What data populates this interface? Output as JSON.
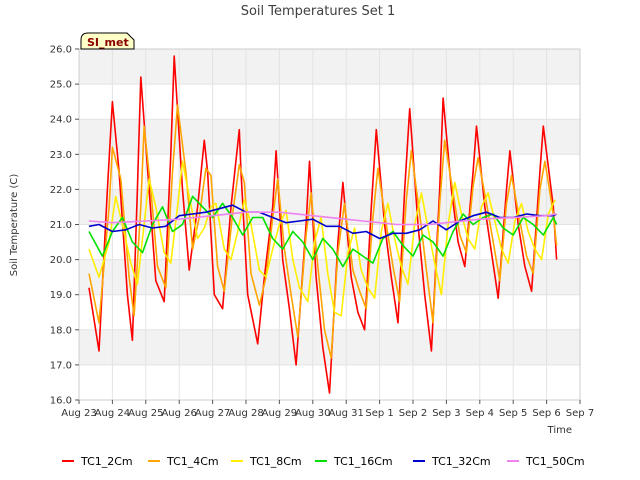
{
  "chart_data": {
    "type": "line",
    "title": "Soil Temperatures Set 1",
    "xlabel": "Time",
    "ylabel": "Soil Temperature (C)",
    "badge": "SI_met",
    "ylim": [
      16.0,
      26.0
    ],
    "yticks": [
      "16.0",
      "17.0",
      "18.0",
      "19.0",
      "20.0",
      "21.0",
      "22.0",
      "23.0",
      "24.0",
      "25.0",
      "26.0"
    ],
    "xlim": [
      0,
      15
    ],
    "xticks": [
      "Aug 23",
      "Aug 24",
      "Aug 25",
      "Aug 26",
      "Aug 27",
      "Aug 28",
      "Aug 29",
      "Aug 30",
      "Aug 31",
      "Sep 1",
      "Sep 2",
      "Sep 3",
      "Sep 4",
      "Sep 5",
      "Sep 6",
      "Sep 7"
    ],
    "grid": true,
    "banded_background": true,
    "legend_position": "bottom",
    "series": [
      {
        "name": "TC1_2Cm",
        "color": "#ff0000",
        "x": [
          0.3,
          0.6,
          0.85,
          1.0,
          1.2,
          1.45,
          1.6,
          1.75,
          1.85,
          2.1,
          2.3,
          2.55,
          2.75,
          2.85,
          3.1,
          3.3,
          3.55,
          3.75,
          3.85,
          4.05,
          4.3,
          4.55,
          4.8,
          4.85,
          5.05,
          5.35,
          5.55,
          5.8,
          5.9,
          6.1,
          6.3,
          6.5,
          6.8,
          6.9,
          7.1,
          7.3,
          7.5,
          7.75,
          7.9,
          8.15,
          8.35,
          8.55,
          8.75,
          8.9,
          9.15,
          9.35,
          9.55,
          9.75,
          9.9,
          10.15,
          10.35,
          10.55,
          10.8,
          10.9,
          11.15,
          11.35,
          11.55,
          11.8,
          11.9,
          12.15,
          12.35,
          12.55,
          12.8,
          12.9,
          13.15,
          13.35,
          13.55,
          13.8,
          13.9,
          14.2,
          14.3
        ],
        "y": [
          19.2,
          17.4,
          22.0,
          24.5,
          22.5,
          19.0,
          17.7,
          22.0,
          25.2,
          22.0,
          19.4,
          18.8,
          23.0,
          25.8,
          22.0,
          19.7,
          21.5,
          23.4,
          22.5,
          19.0,
          18.6,
          21.5,
          23.7,
          22.5,
          19.0,
          17.6,
          19.5,
          21.5,
          23.1,
          20.0,
          18.6,
          17.0,
          21.0,
          22.8,
          19.5,
          17.5,
          16.2,
          20.5,
          22.2,
          19.5,
          18.5,
          18.0,
          21.5,
          23.7,
          21.0,
          19.5,
          18.2,
          22.0,
          24.3,
          21.0,
          19.0,
          17.4,
          22.0,
          24.6,
          22.0,
          20.5,
          19.8,
          22.5,
          23.8,
          21.5,
          20.2,
          18.9,
          22.0,
          23.1,
          21.0,
          19.8,
          19.1,
          22.5,
          23.8,
          21.5,
          20.0
        ]
      },
      {
        "name": "TC1_4Cm",
        "color": "#ffa500",
        "x": [
          0.3,
          0.6,
          0.9,
          1.0,
          1.25,
          1.5,
          1.65,
          1.85,
          1.95,
          2.15,
          2.35,
          2.6,
          2.8,
          2.95,
          3.2,
          3.4,
          3.6,
          3.8,
          3.95,
          4.15,
          4.35,
          4.6,
          4.8,
          4.95,
          5.15,
          5.4,
          5.6,
          5.8,
          5.95,
          6.15,
          6.35,
          6.55,
          6.8,
          6.95,
          7.15,
          7.35,
          7.55,
          7.75,
          7.95,
          8.2,
          8.4,
          8.6,
          8.8,
          8.95,
          9.2,
          9.4,
          9.6,
          9.8,
          9.95,
          10.2,
          10.4,
          10.6,
          10.8,
          10.95,
          11.2,
          11.4,
          11.6,
          11.8,
          11.95,
          12.2,
          12.4,
          12.6,
          12.8,
          12.95,
          13.2,
          13.4,
          13.6,
          13.8,
          13.95,
          14.2,
          14.3
        ],
        "y": [
          19.6,
          18.2,
          21.5,
          23.2,
          22.3,
          19.5,
          18.4,
          21.5,
          23.8,
          22.0,
          19.8,
          19.2,
          22.5,
          24.4,
          22.5,
          20.3,
          21.2,
          22.6,
          22.4,
          19.8,
          19.1,
          21.3,
          22.7,
          22.2,
          19.6,
          18.7,
          19.5,
          21.2,
          22.3,
          20.3,
          19.0,
          17.8,
          20.7,
          21.9,
          19.8,
          18.0,
          17.2,
          20.2,
          21.6,
          19.7,
          19.1,
          18.6,
          21.2,
          22.6,
          21.0,
          19.8,
          18.8,
          21.7,
          23.1,
          21.3,
          19.7,
          18.2,
          21.6,
          23.4,
          21.9,
          20.7,
          20.2,
          22.1,
          22.9,
          21.6,
          20.5,
          19.4,
          21.6,
          22.4,
          21.1,
          20.1,
          19.6,
          22.0,
          22.8,
          21.3,
          20.4
        ]
      },
      {
        "name": "TC1_8Cm",
        "color": "#ffee00",
        "x": [
          0.3,
          0.6,
          0.9,
          1.1,
          1.3,
          1.55,
          1.75,
          1.95,
          2.1,
          2.3,
          2.55,
          2.75,
          2.95,
          3.1,
          3.3,
          3.55,
          3.75,
          3.95,
          4.1,
          4.35,
          4.55,
          4.75,
          4.95,
          5.15,
          5.4,
          5.6,
          5.8,
          6.0,
          6.2,
          6.4,
          6.6,
          6.85,
          7.05,
          7.25,
          7.45,
          7.65,
          7.85,
          8.05,
          8.25,
          8.45,
          8.65,
          8.85,
          9.05,
          9.25,
          9.45,
          9.65,
          9.85,
          10.05,
          10.25,
          10.45,
          10.65,
          10.85,
          11.05,
          11.25,
          11.45,
          11.65,
          11.85,
          12.05,
          12.25,
          12.45,
          12.65,
          12.85,
          13.05,
          13.25,
          13.45,
          13.65,
          13.85,
          14.05,
          14.25
        ],
        "y": [
          20.3,
          19.5,
          20.5,
          21.8,
          21.0,
          19.9,
          19.3,
          21.0,
          22.3,
          21.5,
          20.2,
          19.9,
          21.5,
          22.8,
          21.8,
          20.6,
          20.9,
          21.5,
          21.6,
          20.3,
          20.0,
          20.8,
          21.7,
          21.0,
          19.7,
          19.5,
          20.3,
          21.0,
          21.4,
          20.0,
          19.2,
          18.8,
          20.5,
          21.2,
          19.6,
          18.5,
          18.4,
          20.2,
          20.9,
          19.7,
          19.2,
          18.9,
          20.8,
          21.6,
          20.6,
          19.8,
          19.3,
          21.0,
          21.9,
          20.9,
          19.9,
          19.0,
          21.0,
          22.2,
          21.3,
          20.6,
          20.3,
          21.5,
          21.9,
          21.1,
          20.3,
          19.9,
          21.1,
          21.6,
          20.8,
          20.3,
          20.0,
          21.3,
          21.7
        ]
      },
      {
        "name": "TC1_16Cm",
        "color": "#00e000",
        "x": [
          0.3,
          0.7,
          1.0,
          1.3,
          1.6,
          1.9,
          2.2,
          2.5,
          2.8,
          3.1,
          3.4,
          3.7,
          4.0,
          4.3,
          4.6,
          4.9,
          5.2,
          5.5,
          5.8,
          6.1,
          6.4,
          6.7,
          7.0,
          7.3,
          7.6,
          7.9,
          8.2,
          8.5,
          8.8,
          9.1,
          9.4,
          9.7,
          10.0,
          10.3,
          10.6,
          10.9,
          11.2,
          11.5,
          11.8,
          12.1,
          12.4,
          12.7,
          13.0,
          13.3,
          13.6,
          13.9,
          14.2,
          14.3
        ],
        "y": [
          20.8,
          20.1,
          20.8,
          21.2,
          20.5,
          20.2,
          21.0,
          21.5,
          20.8,
          21.0,
          21.8,
          21.5,
          21.2,
          21.6,
          21.2,
          20.7,
          21.2,
          21.2,
          20.6,
          20.3,
          20.8,
          20.5,
          20.0,
          20.6,
          20.3,
          19.8,
          20.3,
          20.1,
          19.9,
          20.6,
          20.8,
          20.4,
          20.1,
          20.7,
          20.5,
          20.1,
          20.8,
          21.3,
          21.0,
          21.2,
          21.3,
          20.9,
          20.7,
          21.2,
          21.0,
          20.7,
          21.2,
          21.0
        ]
      },
      {
        "name": "TC1_32Cm",
        "color": "#0000cc",
        "x": [
          0.3,
          0.6,
          1.0,
          1.4,
          1.8,
          2.2,
          2.6,
          3.0,
          3.4,
          3.8,
          4.2,
          4.6,
          5.0,
          5.4,
          5.8,
          6.2,
          6.6,
          7.0,
          7.4,
          7.8,
          8.2,
          8.6,
          9.0,
          9.4,
          9.8,
          10.2,
          10.6,
          11.0,
          11.4,
          11.8,
          12.2,
          12.6,
          13.0,
          13.4,
          13.8,
          14.2,
          14.3
        ],
        "y": [
          20.95,
          21.0,
          20.8,
          20.85,
          21.0,
          20.9,
          20.95,
          21.25,
          21.3,
          21.35,
          21.45,
          21.55,
          21.35,
          21.35,
          21.2,
          21.05,
          21.1,
          21.15,
          20.95,
          20.95,
          20.75,
          20.8,
          20.6,
          20.75,
          20.75,
          20.85,
          21.1,
          20.85,
          21.1,
          21.25,
          21.35,
          21.2,
          21.2,
          21.3,
          21.25,
          21.25,
          21.3
        ]
      },
      {
        "name": "TC1_50Cm",
        "color": "#ee82ee",
        "x": [
          0.3,
          1.0,
          2.0,
          3.0,
          4.0,
          5.0,
          6.0,
          7.0,
          8.0,
          8.5,
          9.0,
          9.5,
          10.0,
          10.5,
          11.0,
          12.0,
          13.0,
          14.0,
          14.3
        ],
        "y": [
          21.1,
          21.05,
          21.1,
          21.15,
          21.25,
          21.35,
          21.35,
          21.25,
          21.15,
          21.1,
          21.05,
          21.0,
          21.0,
          21.0,
          21.05,
          21.15,
          21.2,
          21.25,
          21.3
        ]
      }
    ]
  }
}
